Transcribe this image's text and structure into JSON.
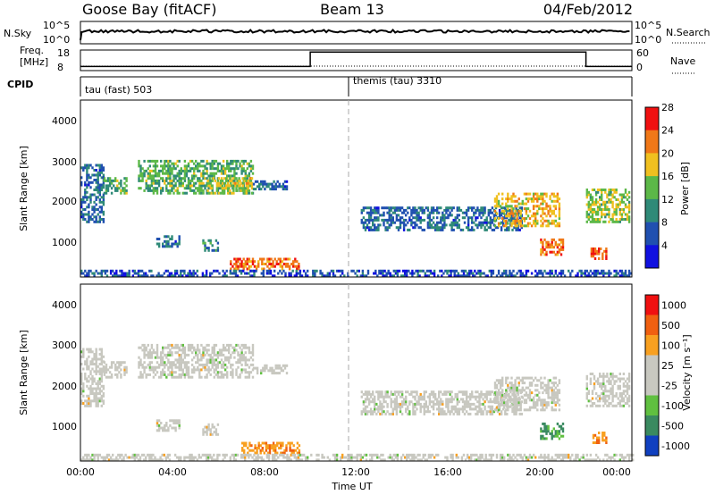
{
  "header": {
    "radar": "Goose Bay (fitACF)",
    "beam": "Beam 13",
    "date": "04/Feb/2012"
  },
  "noise_panel": {
    "left_label": "N.Sky",
    "left_ticks": [
      "10^5",
      "10^0"
    ],
    "right_label": "N.Search",
    "right_ticks": [
      "10^5",
      "10^0"
    ]
  },
  "freq_panel": {
    "left_label_1": "Freq.",
    "left_label_2": "[MHz]",
    "left_ticks": [
      "18",
      "8"
    ],
    "right_label": "Nave",
    "right_ticks": [
      "60",
      "0"
    ]
  },
  "cpid": {
    "label": "CPID",
    "segments": [
      "tau (fast) 503",
      "themis (tau) 3310"
    ]
  },
  "power_panel": {
    "ylabel": "Slant Range [km]",
    "yticks": [
      "1000",
      "2000",
      "3000",
      "4000"
    ],
    "colorbar_title": "Power [dB]",
    "colorbar_ticks": [
      "4",
      "8",
      "12",
      "16",
      "20",
      "24",
      "28"
    ],
    "colorbar_colors": [
      "#1010e0",
      "#2050b0",
      "#2f8a78",
      "#5cb848",
      "#f0c020",
      "#f07818",
      "#f01010"
    ]
  },
  "velocity_panel": {
    "ylabel": "Slant Range [km]",
    "yticks": [
      "1000",
      "2000",
      "3000",
      "4000"
    ],
    "colorbar_title": "Velocity [m s⁻¹]",
    "colorbar_ticks": [
      "1000",
      "500",
      "100",
      "25",
      "-25",
      "-100",
      "-500",
      "-1000"
    ],
    "colorbar_colors": [
      "#1040c0",
      "#3a8a60",
      "#60c040",
      "#c8c8c0",
      "#c8c8c0",
      "#f8a020",
      "#f06010",
      "#f01010"
    ]
  },
  "xaxis": {
    "label": "Time UT",
    "ticks": [
      "00:00",
      "04:00",
      "08:00",
      "12:00",
      "16:00",
      "20:00",
      "00:00"
    ]
  },
  "chart_data": [
    {
      "type": "line",
      "title": "Goose Bay (fitACF)",
      "series": [
        {
          "name": "N.Sky",
          "x": [
            0,
            4,
            8,
            12,
            16,
            20,
            24
          ],
          "values": [
            1000,
            1000,
            1000,
            1000,
            1000,
            1000,
            1000
          ]
        },
        {
          "name": "N.Search",
          "x": [
            0,
            4,
            8,
            12,
            16,
            20,
            24
          ],
          "values": [
            1000,
            1000,
            1000,
            1000,
            1000,
            1000,
            1000
          ]
        }
      ]
    },
    {
      "type": "line",
      "xlabel": "Time UT",
      "series": [
        {
          "name": "Freq.",
          "x": [
            0,
            10,
            10,
            22,
            22,
            24
          ],
          "values": [
            10,
            10,
            17,
            17,
            10,
            10
          ]
        },
        {
          "name": "Nave",
          "x": [
            0,
            24
          ],
          "values": [
            14,
            14
          ]
        }
      ],
      "ylim": [
        8,
        18
      ]
    },
    {
      "type": "heatmap",
      "xlabel": "Time UT",
      "ylabel": "Slant Range [km]",
      "xlim": [
        0,
        24
      ],
      "ylim": [
        180,
        4500
      ],
      "colorbar_title": "Power [dB]",
      "colorbar_range": [
        0,
        30
      ],
      "regions": [
        {
          "t": [
            0.0,
            1.0
          ],
          "r": [
            1500,
            2900
          ],
          "power": 8
        },
        {
          "t": [
            1.0,
            2.0
          ],
          "r": [
            2200,
            2600
          ],
          "power": 14
        },
        {
          "t": [
            2.5,
            7.5
          ],
          "r": [
            2200,
            3000
          ],
          "power": 14
        },
        {
          "t": [
            5.5,
            7.5
          ],
          "r": [
            2200,
            2600
          ],
          "power": 18
        },
        {
          "t": [
            7.5,
            9.0
          ],
          "r": [
            2300,
            2500
          ],
          "power": 8
        },
        {
          "t": [
            3.3,
            4.3
          ],
          "r": [
            900,
            1200
          ],
          "power": 8
        },
        {
          "t": [
            5.3,
            6.0
          ],
          "r": [
            800,
            1100
          ],
          "power": 10
        },
        {
          "t": [
            6.5,
            9.5
          ],
          "r": [
            350,
            600
          ],
          "power": 24
        },
        {
          "t": [
            12.2,
            19.2
          ],
          "r": [
            1300,
            1900
          ],
          "power": 8
        },
        {
          "t": [
            18.0,
            20.8
          ],
          "r": [
            1400,
            2200
          ],
          "power": 20
        },
        {
          "t": [
            20.0,
            21.0
          ],
          "r": [
            700,
            1100
          ],
          "power": 24
        },
        {
          "t": [
            22.0,
            23.9
          ],
          "r": [
            1500,
            2300
          ],
          "power": 16
        },
        {
          "t": [
            22.2,
            22.9
          ],
          "r": [
            600,
            900
          ],
          "power": 26
        },
        {
          "t": [
            0.0,
            24.0
          ],
          "r": [
            180,
            330
          ],
          "power": 6
        }
      ]
    },
    {
      "type": "heatmap",
      "xlabel": "Time UT",
      "ylabel": "Slant Range [km]",
      "xlim": [
        0,
        24
      ],
      "ylim": [
        180,
        4500
      ],
      "colorbar_title": "Velocity [m s⁻¹]",
      "colorbar_range": [
        -1000,
        1000
      ],
      "regions": [
        {
          "t": [
            0.0,
            1.0
          ],
          "r": [
            1500,
            2900
          ],
          "velocity": 0
        },
        {
          "t": [
            1.0,
            2.0
          ],
          "r": [
            2200,
            2600
          ],
          "velocity": 0
        },
        {
          "t": [
            2.5,
            7.5
          ],
          "r": [
            2200,
            3000
          ],
          "velocity": 0
        },
        {
          "t": [
            7.5,
            9.0
          ],
          "r": [
            2300,
            2500
          ],
          "velocity": 0
        },
        {
          "t": [
            3.3,
            4.3
          ],
          "r": [
            900,
            1200
          ],
          "velocity": 0
        },
        {
          "t": [
            5.3,
            6.0
          ],
          "r": [
            800,
            1100
          ],
          "velocity": 0
        },
        {
          "t": [
            7.0,
            9.5
          ],
          "r": [
            350,
            650
          ],
          "velocity": -150
        },
        {
          "t": [
            12.2,
            19.2
          ],
          "r": [
            1300,
            1900
          ],
          "velocity": 0
        },
        {
          "t": [
            18.0,
            20.8
          ],
          "r": [
            1400,
            2200
          ],
          "velocity": 0
        },
        {
          "t": [
            20.0,
            21.0
          ],
          "r": [
            700,
            1100
          ],
          "velocity": 100
        },
        {
          "t": [
            22.0,
            23.9
          ],
          "r": [
            1500,
            2300
          ],
          "velocity": 0
        },
        {
          "t": [
            22.2,
            22.9
          ],
          "r": [
            600,
            900
          ],
          "velocity": -120
        },
        {
          "t": [
            0.0,
            24.0
          ],
          "r": [
            180,
            330
          ],
          "velocity": 0
        }
      ]
    }
  ]
}
